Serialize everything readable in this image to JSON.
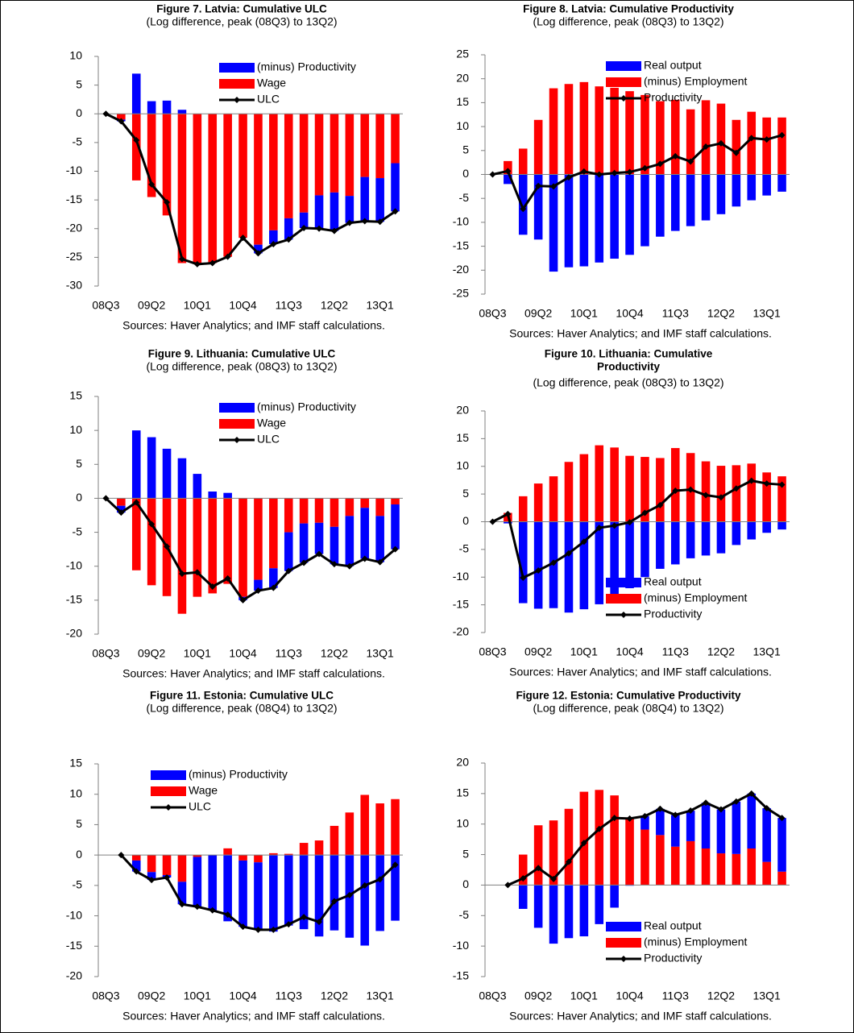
{
  "chart_data": [
    {
      "type": "bar",
      "title": "Figure 7. Latvia: Cumulative ULC",
      "subtitle": "(Log difference, peak (08Q3) to 13Q2)",
      "source": "Sources: Haver Analytics; and IMF staff calculations.",
      "legend": "upper right",
      "categories": [
        "08Q3",
        null,
        null,
        "09Q2",
        null,
        null,
        "10Q1",
        null,
        null,
        "10Q4",
        null,
        null,
        "11Q3",
        null,
        null,
        "12Q2",
        null,
        null,
        "13Q1",
        null
      ],
      "ylim": [
        -30,
        10
      ],
      "yticks": [
        -30,
        -25,
        -20,
        -15,
        -10,
        -5,
        0,
        5,
        10
      ],
      "series": [
        {
          "name": "(minus) Productivity",
          "type": "bar",
          "color": "#0000ff",
          "values": [
            0,
            -0.3,
            7,
            2.2,
            2.3,
            0.7,
            0,
            0,
            0,
            0,
            -1.5,
            -2.4,
            -3.7,
            -2.7,
            -5.8,
            -6.7,
            -4.7,
            -7.7,
            -7.6,
            -8.4
          ]
        },
        {
          "name": "Wage",
          "type": "bar",
          "color": "#ff0000",
          "values": [
            0,
            -1.0,
            -11.6,
            -14.5,
            -17.7,
            -26.0,
            -26.2,
            -26,
            -24.9,
            -21.6,
            -22.8,
            -20.3,
            -18.2,
            -17.2,
            -14.2,
            -13.7,
            -14.3,
            -11,
            -11.2,
            -8.6
          ]
        },
        {
          "name": "ULC",
          "type": "line",
          "color": "#000000",
          "values": [
            0,
            -1.3,
            -4.6,
            -12.3,
            -15.4,
            -25.3,
            -26.2,
            -26,
            -24.9,
            -21.6,
            -24.3,
            -22.7,
            -21.9,
            -19.9,
            -20,
            -20.4,
            -19,
            -18.7,
            -18.8,
            -17
          ]
        }
      ]
    },
    {
      "type": "bar",
      "title": "Figure 8. Latvia: Cumulative Productivity",
      "subtitle": "(Log difference, peak (08Q3) to 13Q2)",
      "source": "Sources: Haver Analytics; and IMF staff calculations.",
      "legend": "upper right",
      "categories": [
        "08Q3",
        null,
        null,
        "09Q2",
        null,
        null,
        "10Q1",
        null,
        null,
        "10Q4",
        null,
        null,
        "11Q3",
        null,
        null,
        "12Q2",
        null,
        null,
        "13Q1",
        null
      ],
      "ylim": [
        -25,
        25
      ],
      "yticks": [
        -25,
        -20,
        -15,
        -10,
        -5,
        0,
        5,
        10,
        15,
        20,
        25
      ],
      "series": [
        {
          "name": "Real output",
          "type": "bar",
          "color": "#0000ff",
          "values": [
            0,
            -2,
            -12.6,
            -13.6,
            -20.3,
            -19.4,
            -19.2,
            -18.4,
            -17.6,
            -16.8,
            -15,
            -13,
            -11.8,
            -10.8,
            -9.6,
            -8.3,
            -6.7,
            -5.4,
            -4.4,
            -3.6
          ]
        },
        {
          "name": "(minus) Employment",
          "type": "bar",
          "color": "#ff0000",
          "values": [
            0,
            2.8,
            5.4,
            11.4,
            18,
            18.9,
            19.3,
            18.4,
            18.1,
            17.4,
            16.6,
            15.3,
            15.6,
            13.6,
            15.5,
            14.8,
            11.4,
            13.1,
            11.9,
            11.9
          ]
        },
        {
          "name": "Productivity",
          "type": "line",
          "color": "#000000",
          "values": [
            0,
            0.7,
            -7.2,
            -2.4,
            -2.5,
            -0.6,
            0.6,
            0,
            0.3,
            0.5,
            1.3,
            2.2,
            3.8,
            2.7,
            5.8,
            6.5,
            4.5,
            7.6,
            7.3,
            8.2
          ]
        }
      ]
    },
    {
      "type": "bar",
      "title": "Figure 9. Lithuania: Cumulative ULC",
      "subtitle": "(Log difference, peak (08Q3) to 13Q2)",
      "source": "Sources: Haver Analytics; and IMF staff calculations.",
      "legend": "upper right",
      "categories": [
        "08Q3",
        null,
        null,
        "09Q2",
        null,
        null,
        "10Q1",
        null,
        null,
        "10Q4",
        null,
        null,
        "11Q3",
        null,
        null,
        "12Q2",
        null,
        null,
        "13Q1",
        null
      ],
      "ylim": [
        -20,
        15
      ],
      "yticks": [
        -20,
        -15,
        -10,
        -5,
        0,
        5,
        10,
        15
      ],
      "series": [
        {
          "name": "(minus) Productivity",
          "type": "bar",
          "color": "#0000ff",
          "values": [
            0,
            -1.0,
            10,
            9,
            7.3,
            5.9,
            3.6,
            1.0,
            0.8,
            -0.5,
            -1.6,
            -2.9,
            -5.7,
            -5.8,
            -4.6,
            -5.5,
            -7.4,
            -7.5,
            -6.8,
            -6.6
          ]
        },
        {
          "name": "Wage",
          "type": "bar",
          "color": "#ff0000",
          "values": [
            0,
            -1.1,
            -10.6,
            -12.8,
            -14.4,
            -17,
            -14.5,
            -14,
            -12.6,
            -14.5,
            -12,
            -10.3,
            -5,
            -3.7,
            -3.6,
            -4.2,
            -2.6,
            -1.4,
            -2.6,
            -0.9
          ]
        },
        {
          "name": "ULC",
          "type": "line",
          "color": "#000000",
          "values": [
            0,
            -2.1,
            -0.6,
            -3.8,
            -7.1,
            -11.1,
            -10.9,
            -13,
            -11.8,
            -15,
            -13.6,
            -13.2,
            -10.7,
            -9.5,
            -8.2,
            -9.7,
            -10,
            -8.9,
            -9.4,
            -7.5
          ]
        }
      ]
    },
    {
      "type": "bar",
      "title": [
        "Figure 10. Lithuania: Cumulative",
        "Productivity"
      ],
      "subtitle": "(Log difference, peak (08Q3) to 13Q2)",
      "source": "Sources: Haver Analytics; and IMF staff calculations.",
      "legend": "lower right",
      "categories": [
        "08Q3",
        null,
        null,
        "09Q2",
        null,
        null,
        "10Q1",
        null,
        null,
        "10Q4",
        null,
        null,
        "11Q3",
        null,
        null,
        "12Q2",
        null,
        null,
        "13Q1",
        null
      ],
      "ylim": [
        -20,
        20
      ],
      "yticks": [
        -20,
        -15,
        -10,
        -5,
        0,
        5,
        10,
        15,
        20
      ],
      "series": [
        {
          "name": "Real output",
          "type": "bar",
          "color": "#0000ff",
          "values": [
            0,
            -0.3,
            -14.7,
            -15.7,
            -15.6,
            -16.4,
            -15.8,
            -14.9,
            -14.1,
            -12,
            -10,
            -8.5,
            -7.7,
            -6.6,
            -6.1,
            -5.7,
            -4.2,
            -3.2,
            -2,
            -1.4
          ]
        },
        {
          "name": "(minus) Employment",
          "type": "bar",
          "color": "#ff0000",
          "values": [
            0,
            1.6,
            4.6,
            6.9,
            8.2,
            10.8,
            12.2,
            13.8,
            13.4,
            11.9,
            11.7,
            11.5,
            13.3,
            12.4,
            10.9,
            10.1,
            10.2,
            10.5,
            8.9,
            8.2
          ]
        },
        {
          "name": "Productivity",
          "type": "line",
          "color": "#000000",
          "values": [
            0,
            1.4,
            -10.1,
            -8.8,
            -7.4,
            -5.7,
            -3.6,
            -1.1,
            -0.7,
            -0.1,
            1.6,
            3,
            5.6,
            5.8,
            4.8,
            4.4,
            6,
            7.4,
            6.9,
            6.7
          ]
        }
      ]
    },
    {
      "type": "bar",
      "title": "Figure 11. Estonia: Cumulative ULC",
      "subtitle": "(Log difference, peak (08Q4) to 13Q2)",
      "source": "Sources: Haver Analytics; and IMF staff calculations.",
      "legend": "upper center",
      "categories": [
        "08Q3",
        null,
        null,
        "09Q2",
        null,
        null,
        "10Q1",
        null,
        null,
        "10Q4",
        null,
        null,
        "11Q3",
        null,
        null,
        "12Q2",
        null,
        null,
        "13Q1",
        null
      ],
      "ylim": [
        -20,
        15
      ],
      "yticks": [
        -20,
        -15,
        -10,
        -5,
        0,
        5,
        10,
        15
      ],
      "series": [
        {
          "name": "(minus) Productivity",
          "type": "bar",
          "color": "#0000ff",
          "values": [
            null,
            0,
            -1.8,
            -1.3,
            -0.4,
            -3.7,
            -8.2,
            -9.1,
            -10.9,
            -10.9,
            -11.1,
            -12.6,
            -11.6,
            -12.2,
            -13.4,
            -12.4,
            -13.6,
            -14.9,
            -12.5,
            -10.8
          ]
        },
        {
          "name": "Wage",
          "type": "bar",
          "color": "#ff0000",
          "values": [
            null,
            0,
            -0.9,
            -2.8,
            -3.3,
            -4.4,
            -0.3,
            0,
            1.1,
            -0.9,
            -1.2,
            0.3,
            0.2,
            2,
            2.4,
            4.8,
            7,
            9.9,
            8.5,
            9.2
          ]
        },
        {
          "name": "ULC",
          "type": "line",
          "color": "#000000",
          "values": [
            null,
            0,
            -2.7,
            -4.1,
            -3.7,
            -8.1,
            -8.5,
            -9.1,
            -9.8,
            -11.8,
            -12.3,
            -12.3,
            -11.4,
            -10.2,
            -11,
            -7.6,
            -6.6,
            -5,
            -4,
            -1.6
          ]
        }
      ]
    },
    {
      "type": "bar",
      "title": "Figure 12. Estonia: Cumulative Productivity",
      "subtitle": "(Log difference, peak (08Q4) to 13Q2)",
      "source": "Sources: Haver Analytics; and IMF staff calculations.",
      "legend": "lower right",
      "categories": [
        "08Q3",
        null,
        null,
        "09Q2",
        null,
        null,
        "10Q1",
        null,
        null,
        "10Q4",
        null,
        null,
        "11Q3",
        null,
        null,
        "12Q2",
        null,
        null,
        "13Q1",
        null
      ],
      "ylim": [
        -15,
        20
      ],
      "yticks": [
        -15,
        -10,
        -5,
        0,
        5,
        10,
        15,
        20
      ],
      "series": [
        {
          "name": "Real output",
          "type": "bar",
          "color": "#0000ff",
          "values": [
            null,
            0,
            -3.9,
            -7,
            -9.6,
            -8.7,
            -8.4,
            -6.4,
            -3.7,
            -0.1,
            2.2,
            4.3,
            5.2,
            5.0,
            7.5,
            7.2,
            8.6,
            9,
            8.8,
            8.8
          ]
        },
        {
          "name": "(minus) Employment",
          "type": "bar",
          "color": "#ff0000",
          "values": [
            null,
            0,
            5,
            9.8,
            10.6,
            12.5,
            15.3,
            15.6,
            14.7,
            11,
            9.1,
            8.2,
            6.3,
            7.2,
            6,
            5.2,
            5.1,
            6,
            3.8,
            2.2
          ]
        },
        {
          "name": "Productivity",
          "type": "line",
          "color": "#000000",
          "values": [
            null,
            0,
            1.1,
            2.8,
            1.0,
            3.8,
            6.9,
            9.2,
            11,
            10.9,
            11.3,
            12.5,
            11.5,
            12.2,
            13.5,
            12.4,
            13.7,
            15,
            12.6,
            11
          ]
        }
      ]
    }
  ]
}
